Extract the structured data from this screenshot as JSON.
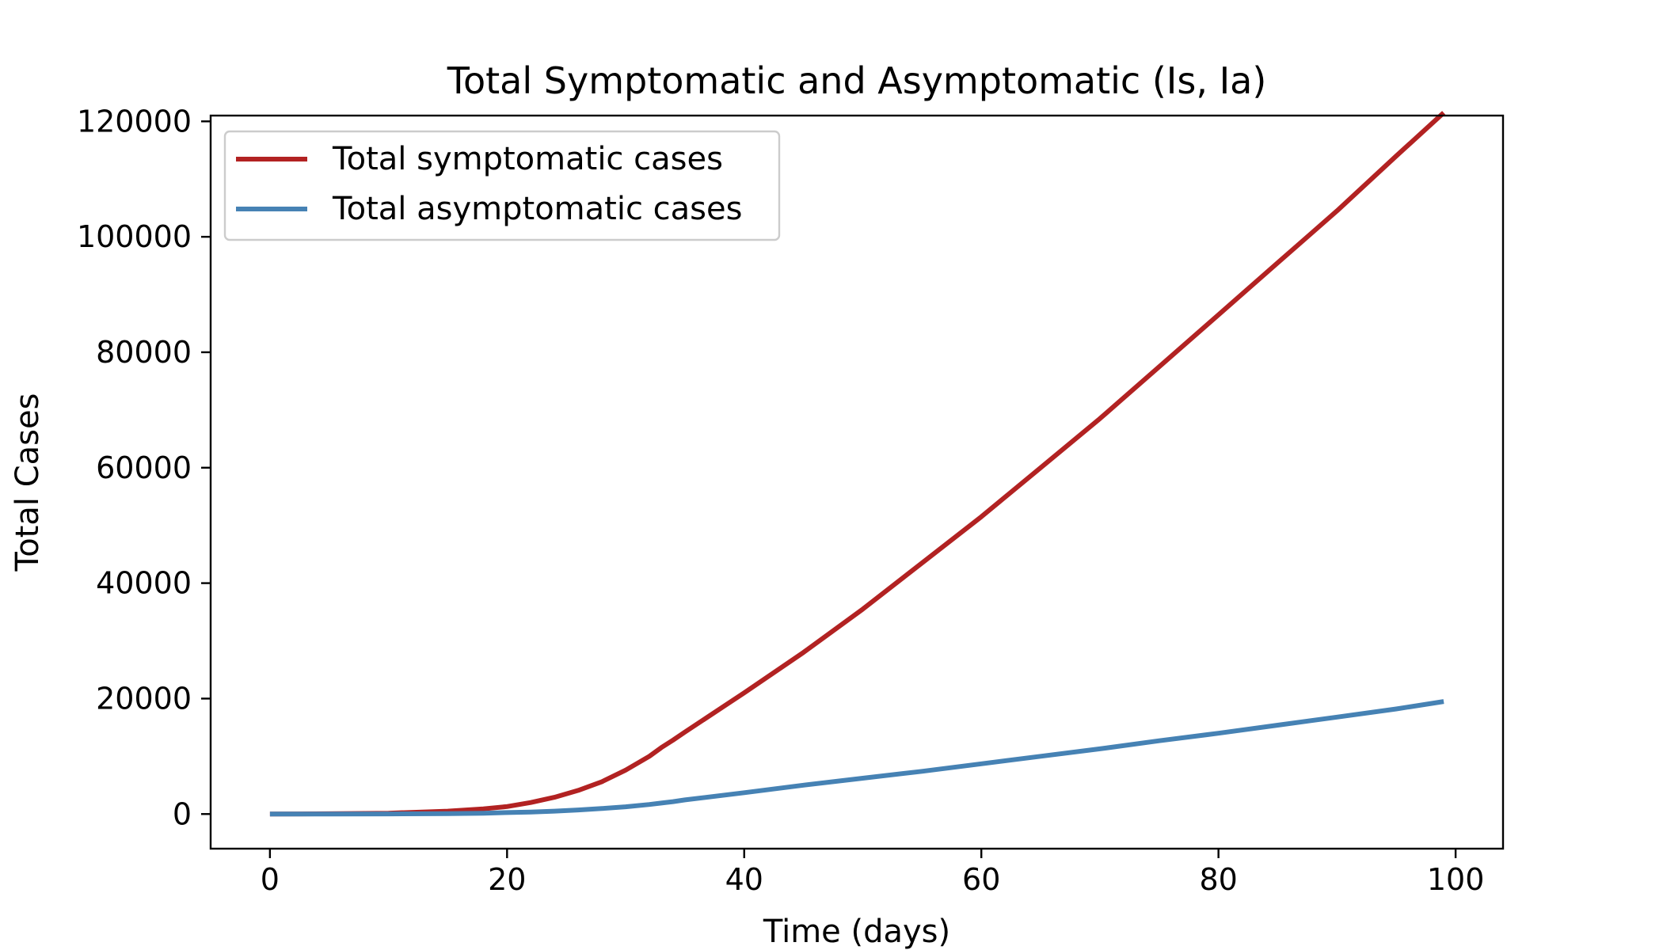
{
  "chart_data": {
    "type": "line",
    "title": "Total Symptomatic and Asymptomatic (Is, Ia)",
    "xlabel": "Time (days)",
    "ylabel": "Total Cases",
    "xlim": [
      -5,
      104
    ],
    "ylim": [
      -6000,
      121000
    ],
    "x_ticks": [
      0,
      20,
      40,
      60,
      80,
      100
    ],
    "y_ticks": [
      0,
      20000,
      40000,
      60000,
      80000,
      100000,
      120000
    ],
    "x_tick_labels": [
      "0",
      "20",
      "40",
      "60",
      "80",
      "100"
    ],
    "y_tick_labels": [
      "0",
      "20000",
      "40000",
      "60000",
      "80000",
      "100000",
      "120000"
    ],
    "grid": false,
    "legend_position": "top-left",
    "x": [
      0,
      5,
      10,
      15,
      18,
      20,
      22,
      24,
      26,
      28,
      30,
      32,
      33,
      34,
      35,
      40,
      45,
      50,
      55,
      60,
      65,
      70,
      75,
      80,
      85,
      90,
      95,
      99
    ],
    "series": [
      {
        "name": "Total symptomatic cases",
        "color": "#b22222",
        "values": [
          0,
          50,
          150,
          500,
          900,
          1300,
          2000,
          2900,
          4100,
          5600,
          7600,
          10000,
          11500,
          12800,
          14200,
          21000,
          28000,
          35500,
          43500,
          51500,
          60000,
          68500,
          77500,
          86500,
          95500,
          104500,
          114000,
          121500
        ]
      },
      {
        "name": "Total asymptomatic cases",
        "color": "#4682b4",
        "values": [
          0,
          5,
          20,
          80,
          150,
          250,
          350,
          500,
          700,
          950,
          1250,
          1650,
          1900,
          2150,
          2450,
          3700,
          5000,
          6200,
          7400,
          8700,
          10000,
          11300,
          12700,
          14000,
          15400,
          16800,
          18200,
          19500
        ]
      }
    ]
  }
}
